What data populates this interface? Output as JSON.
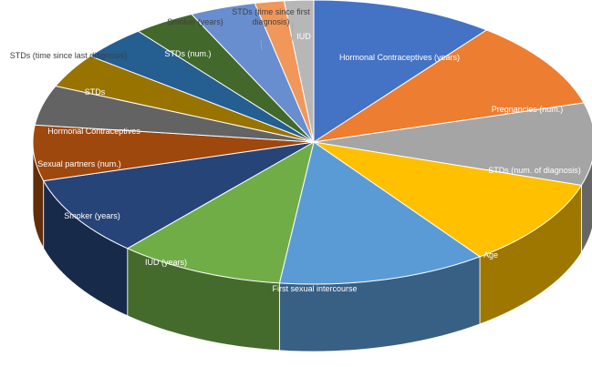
{
  "chart_data": {
    "type": "pie",
    "variant": "3d-tilted",
    "legend": "none",
    "categories": [
      "Hormonal Contraceptives (years)",
      "Pregnancies (num.)",
      "STDs (num. of diagnosis)",
      "Age",
      "First sexual intercourse",
      "IUD (years)",
      "Smoker (years)",
      "Sexual partners (num.)",
      "Hormonal Contraceptives",
      "STDs",
      "STDs (time since last diagnosis)",
      "STDs (num.)",
      "Smoker (years)",
      "STDs (time since first diagnosis)",
      "IUD"
    ],
    "values": [
      10.0,
      9.5,
      8.9,
      9.5,
      11.4,
      9.1,
      8.6,
      6.0,
      4.3,
      3.7,
      3.7,
      3.4,
      3.6,
      1.6,
      1.6
    ],
    "colors": [
      "#4472C4",
      "#ED7D31",
      "#A5A5A5",
      "#FFC000",
      "#5B9BD5",
      "#70AD47",
      "#264478",
      "#9E480E",
      "#636363",
      "#997300",
      "#255E91",
      "#43682B",
      "#698ED0",
      "#F1975A",
      "#B7B7B7"
    ],
    "label_colors": [
      "#ffffff",
      "#ffffff",
      "#ffffff",
      "#ffffff",
      "#ffffff",
      "#ffffff",
      "#ffffff",
      "#ffffff",
      "#ffffff",
      "#ffffff",
      "#404040",
      "#ffffff",
      "#404040",
      "#404040",
      "#ffffff"
    ]
  }
}
